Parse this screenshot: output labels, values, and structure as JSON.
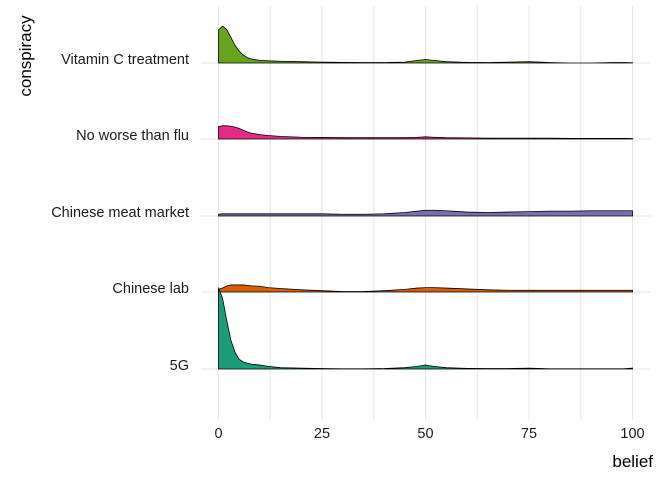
{
  "chart_data": {
    "type": "area",
    "subtype": "ridgeline",
    "xlabel": "belief",
    "ylabel": "conspiracy",
    "xlim": [
      0,
      100
    ],
    "x_ticks": [
      0,
      25,
      50,
      75,
      100
    ],
    "x_tick_labels": [
      "0",
      "25",
      "50",
      "75",
      "100"
    ],
    "categories": [
      "Vitamin C treatment",
      "No worse than flu",
      "Chinese meat market",
      "Chinese lab",
      "5G"
    ],
    "grid": true,
    "legend": "none",
    "x": [
      0,
      1,
      2,
      3,
      4,
      5,
      6,
      7,
      8,
      10,
      12,
      15,
      20,
      25,
      30,
      35,
      40,
      45,
      48,
      50,
      52,
      55,
      60,
      65,
      70,
      75,
      80,
      85,
      90,
      95,
      98,
      100
    ],
    "series": [
      {
        "name": "Vitamin C treatment",
        "color": "#66a61e",
        "values": [
          0.75,
          0.84,
          0.76,
          0.58,
          0.4,
          0.27,
          0.18,
          0.12,
          0.09,
          0.06,
          0.05,
          0.04,
          0.03,
          0.02,
          0.015,
          0.012,
          0.012,
          0.02,
          0.06,
          0.08,
          0.06,
          0.03,
          0.015,
          0.01,
          0.02,
          0.03,
          0.01,
          0.0,
          0.0,
          0.01,
          0.01,
          0.005
        ]
      },
      {
        "name": "No worse than flu",
        "color": "#e7298a",
        "values": [
          0.28,
          0.3,
          0.3,
          0.29,
          0.27,
          0.24,
          0.2,
          0.16,
          0.13,
          0.1,
          0.08,
          0.06,
          0.04,
          0.035,
          0.03,
          0.03,
          0.03,
          0.03,
          0.035,
          0.05,
          0.04,
          0.03,
          0.025,
          0.02,
          0.02,
          0.02,
          0.02,
          0.015,
          0.015,
          0.015,
          0.015,
          0.01
        ]
      },
      {
        "name": "Chinese meat market",
        "color": "#7570b3",
        "values": [
          0.04,
          0.05,
          0.05,
          0.05,
          0.05,
          0.05,
          0.05,
          0.05,
          0.05,
          0.05,
          0.05,
          0.05,
          0.05,
          0.05,
          0.04,
          0.04,
          0.05,
          0.08,
          0.11,
          0.13,
          0.13,
          0.12,
          0.09,
          0.08,
          0.09,
          0.1,
          0.11,
          0.11,
          0.12,
          0.12,
          0.12,
          0.12
        ]
      },
      {
        "name": "Chinese lab",
        "color": "#d95f02",
        "values": [
          0.06,
          0.09,
          0.14,
          0.16,
          0.16,
          0.16,
          0.16,
          0.15,
          0.14,
          0.13,
          0.1,
          0.08,
          0.05,
          0.03,
          0.01,
          0.01,
          0.03,
          0.06,
          0.09,
          0.1,
          0.1,
          0.09,
          0.07,
          0.05,
          0.04,
          0.04,
          0.04,
          0.04,
          0.04,
          0.04,
          0.04,
          0.04
        ]
      },
      {
        "name": "5G",
        "color": "#1b9e77",
        "values": [
          1.85,
          1.6,
          1.1,
          0.65,
          0.38,
          0.22,
          0.16,
          0.13,
          0.11,
          0.09,
          0.06,
          0.03,
          0.02,
          0.01,
          0.005,
          0.005,
          0.01,
          0.03,
          0.06,
          0.09,
          0.06,
          0.03,
          0.015,
          0.01,
          0.01,
          0.02,
          0.005,
          0.005,
          0.005,
          0.005,
          0.005,
          0.02
        ]
      }
    ]
  }
}
